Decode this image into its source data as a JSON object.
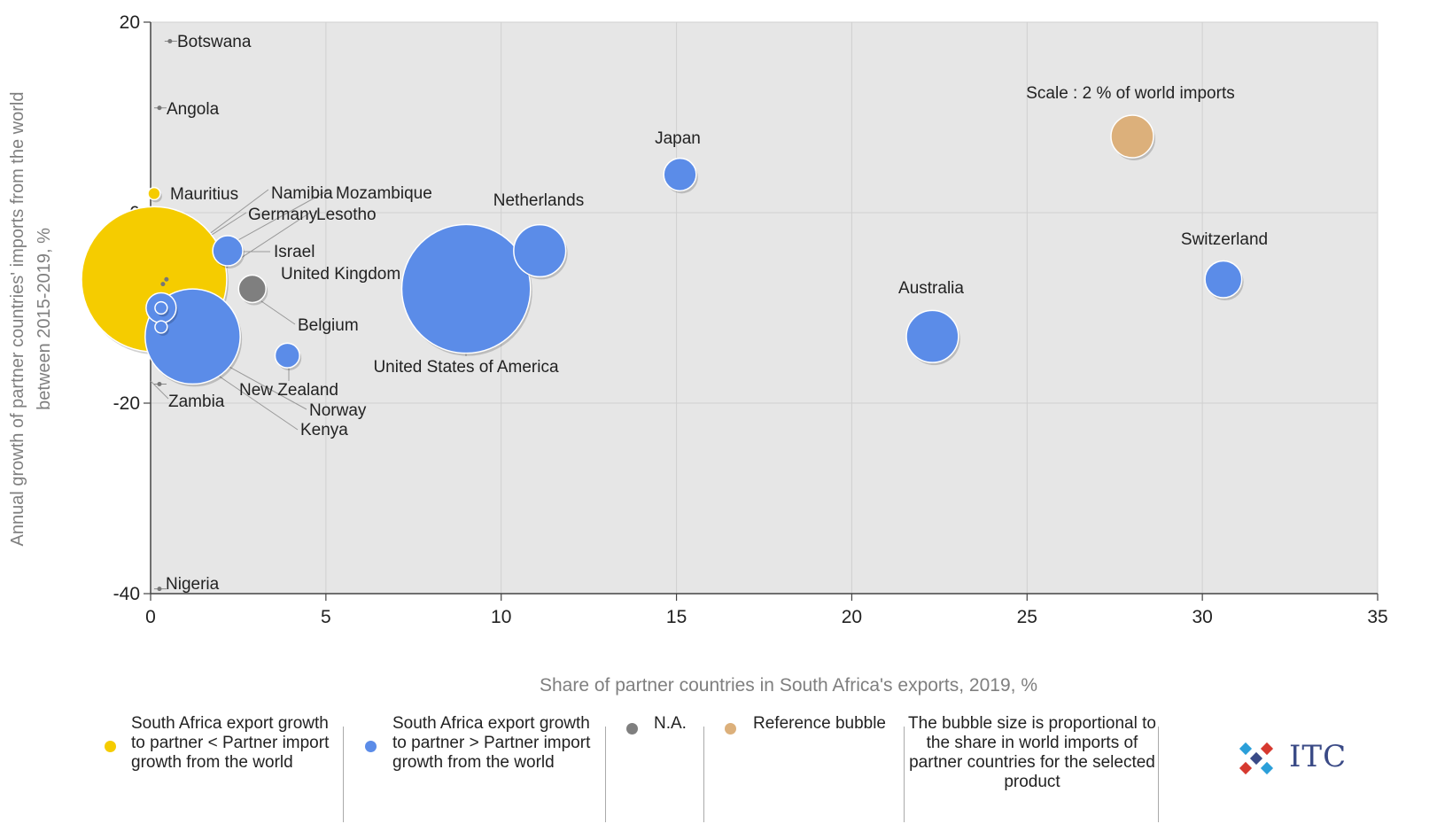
{
  "chart_data": {
    "type": "bubble",
    "xlabel": "Share of partner countries in South Africa's exports, 2019, %",
    "ylabel": "Annual growth of partner countries' imports from the world between 2015-2019, %",
    "xlim": [
      0,
      35
    ],
    "ylim": [
      -40,
      20
    ],
    "x_ticks": [
      "0",
      "5",
      "10",
      "15",
      "20",
      "25",
      "30",
      "35"
    ],
    "y_ticks": [
      "20",
      "0",
      "-20",
      "-40"
    ],
    "grid": true,
    "points": [
      {
        "name": "Botswana",
        "x": 0.4,
        "y": 18,
        "size": 0,
        "category": "gray"
      },
      {
        "name": "Angola",
        "x": 0.1,
        "y": 11,
        "size": 0,
        "category": "gray"
      },
      {
        "name": "Mauritius",
        "x": 0.1,
        "y": 2,
        "size": 0.05,
        "category": "yellow"
      },
      {
        "name": "Nigeria",
        "x": 0.1,
        "y": -39.5,
        "size": 0,
        "category": "gray"
      },
      {
        "name": "Zambia",
        "x": 0.1,
        "y": -18,
        "size": 0,
        "category": "gray"
      },
      {
        "name": "Namibia",
        "x": 0.3,
        "y": -7,
        "size": 0,
        "category": "gray"
      },
      {
        "name": "Mozambique",
        "x": 0.2,
        "y": -7.5,
        "size": 0,
        "category": "gray"
      },
      {
        "name": "Germany",
        "x": 0.1,
        "y": -7,
        "size": 7.0,
        "category": "yellow"
      },
      {
        "name": "Lesotho",
        "x": 0.3,
        "y": -10,
        "size": 0.05,
        "category": "blue"
      },
      {
        "name": "Israel",
        "x": 2.2,
        "y": -4,
        "size": 0.3,
        "category": "blue"
      },
      {
        "name": "United Kingdom",
        "x": 2.9,
        "y": -8,
        "size": 0.25,
        "category": "gray"
      },
      {
        "name": "Belgium",
        "x": 0.3,
        "y": -10,
        "size": 0.3,
        "category": "blue"
      },
      {
        "name": "New Zealand",
        "x": 3.9,
        "y": -15,
        "size": 0.2,
        "category": "blue"
      },
      {
        "name": "Norway",
        "x": 0.3,
        "y": -12,
        "size": 0.05,
        "category": "blue"
      },
      {
        "name": "Kenya",
        "x": 1.2,
        "y": -13,
        "size": 3.0,
        "category": "blue"
      },
      {
        "name": "United States of America",
        "x": 9.0,
        "y": -8,
        "size": 5.5,
        "category": "blue"
      },
      {
        "name": "Netherlands",
        "x": 11.1,
        "y": -4,
        "size": 0.9,
        "category": "blue"
      },
      {
        "name": "Japan",
        "x": 15.1,
        "y": 4,
        "size": 0.35,
        "category": "blue"
      },
      {
        "name": "Australia",
        "x": 22.3,
        "y": -13,
        "size": 0.9,
        "category": "blue"
      },
      {
        "name": "Switzerland",
        "x": 30.6,
        "y": -7,
        "size": 0.45,
        "category": "blue"
      },
      {
        "name": "Scale : 2 % of world imports",
        "x": 28.0,
        "y": 8,
        "size": 0.6,
        "category": "reference"
      }
    ]
  },
  "colors": {
    "yellow": "#f5cc00",
    "blue": "#5b8ce8",
    "gray": "#7f7f7f",
    "reference": "#dcb07b",
    "plot_bg": "#e6e6e6"
  },
  "legend": {
    "yellow_text": "South Africa export growth to partner < Partner import growth from the world",
    "blue_text": "South Africa export growth to partner > Partner import growth from the world",
    "na_text": "N.A.",
    "reference_text": "Reference bubble",
    "size_note": "The bubble size is proportional to the share in world imports of partner countries for the selected product"
  },
  "logo": {
    "text": "ITC"
  }
}
